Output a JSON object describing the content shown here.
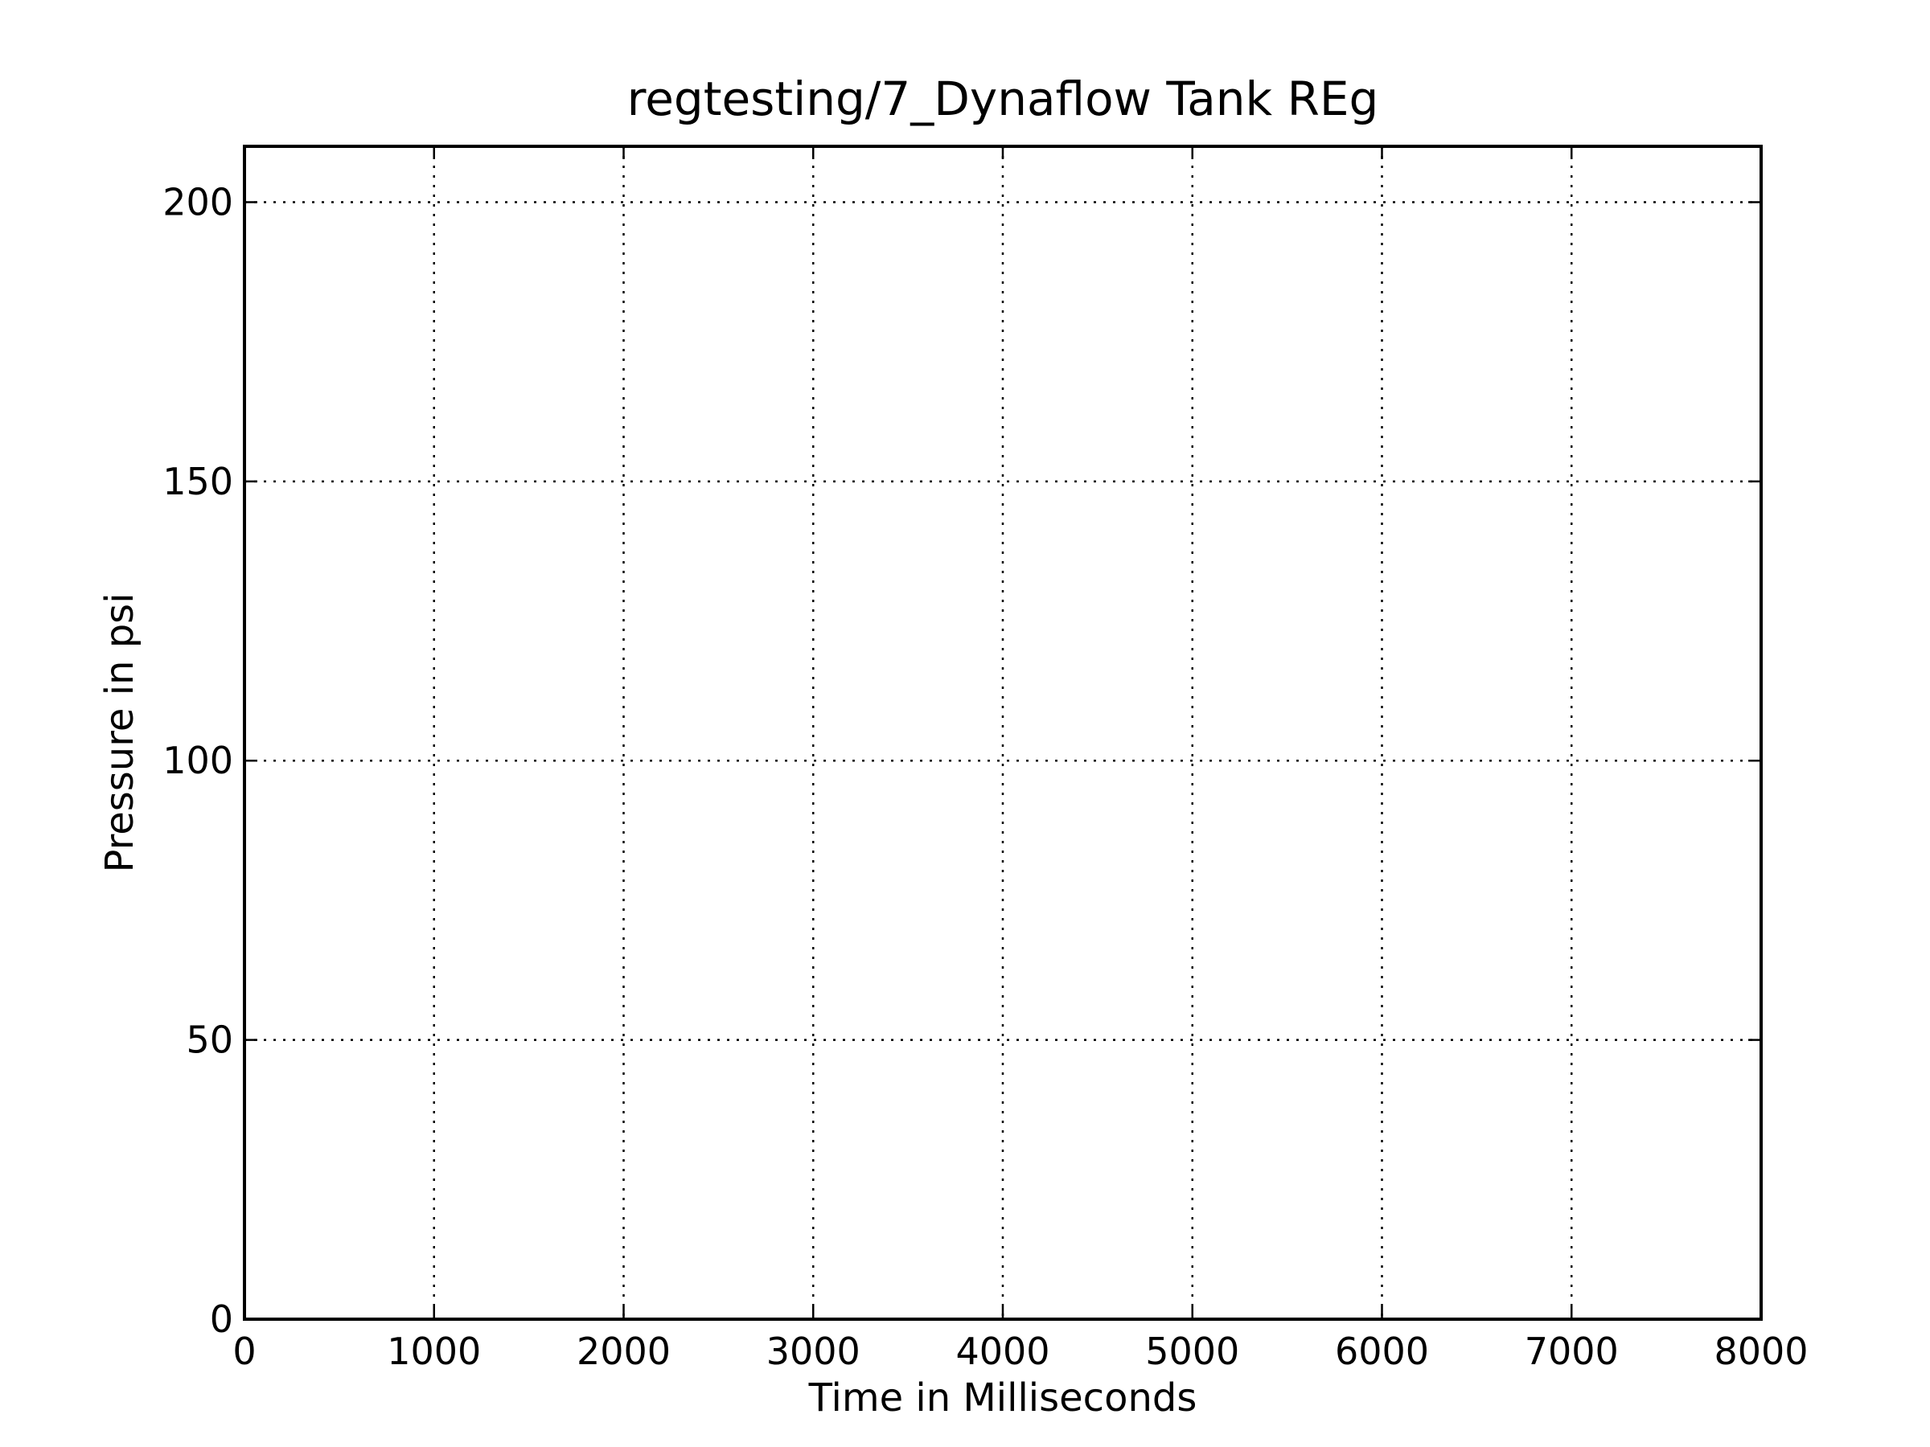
{
  "chart_data": {
    "type": "line",
    "title": "regtesting/7_Dynaflow Tank REg",
    "xlabel": "Time in Milliseconds",
    "ylabel": "Pressure in psi",
    "xlim": [
      0,
      8000
    ],
    "ylim": [
      0,
      210
    ],
    "xticks": [
      0,
      1000,
      2000,
      3000,
      4000,
      5000,
      6000,
      7000,
      8000
    ],
    "xtick_labels": [
      "0",
      "1000",
      "2000",
      "3000",
      "4000",
      "5000",
      "6000",
      "7000",
      "8000"
    ],
    "yticks": [
      0,
      50,
      100,
      150,
      200
    ],
    "ytick_labels": [
      "0",
      "50",
      "100",
      "150",
      "200"
    ],
    "grid": true,
    "grid_style": "dotted",
    "series": []
  }
}
